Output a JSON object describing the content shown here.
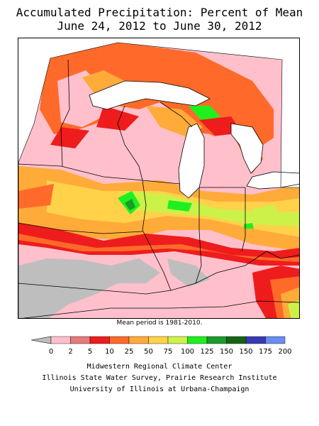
{
  "title": {
    "line1": "Accumulated Precipitation: Percent of Mean",
    "line2": "June 24, 2012 to June 30, 2012"
  },
  "note": "Mean period is 1981-2010.",
  "legend": {
    "under_color": "#bebebe",
    "bins": [
      {
        "label": "0",
        "color": "#ffc0cb"
      },
      {
        "label": "2",
        "color": "#e57a7a"
      },
      {
        "label": "5",
        "color": "#ee1c1c"
      },
      {
        "label": "10",
        "color": "#ff6a2a"
      },
      {
        "label": "25",
        "color": "#ffab3a"
      },
      {
        "label": "50",
        "color": "#ffd24a"
      },
      {
        "label": "75",
        "color": "#ccf24a"
      },
      {
        "label": "100",
        "color": "#1ef01e"
      },
      {
        "label": "125",
        "color": "#1a9a2a"
      },
      {
        "label": "150",
        "color": "#146414"
      },
      {
        "label": "175",
        "color": "#3a3ab4"
      },
      {
        "label": "200",
        "color": "#6a8cf2"
      }
    ],
    "end_label": "200"
  },
  "credits": {
    "line1": "Midwestern Regional Climate Center",
    "line2": "Illinois State Water Survey, Prairie Research Institute",
    "line3": "University of Illinois at Urbana-Champaign"
  }
}
